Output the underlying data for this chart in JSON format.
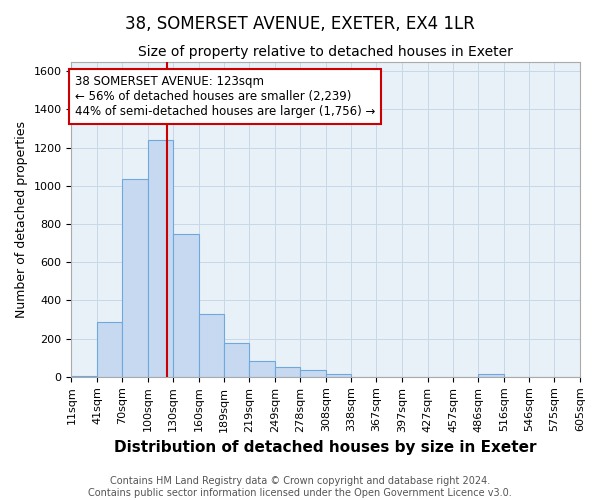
{
  "title1": "38, SOMERSET AVENUE, EXETER, EX4 1LR",
  "title2": "Size of property relative to detached houses in Exeter",
  "xlabel": "Distribution of detached houses by size in Exeter",
  "ylabel": "Number of detached properties",
  "bin_edges": [
    11,
    41,
    70,
    100,
    130,
    160,
    189,
    219,
    249,
    278,
    308,
    338,
    367,
    397,
    427,
    457,
    486,
    516,
    546,
    575,
    605
  ],
  "bar_heights": [
    5,
    285,
    1035,
    1240,
    750,
    330,
    175,
    85,
    50,
    35,
    15,
    0,
    0,
    0,
    0,
    0,
    15,
    0,
    0,
    0
  ],
  "bar_facecolor": "#c6d9f1",
  "bar_edgecolor": "#6fa8dc",
  "red_line_x": 123,
  "annotation_text": "38 SOMERSET AVENUE: 123sqm\n← 56% of detached houses are smaller (2,239)\n44% of semi-detached houses are larger (1,756) →",
  "annotation_box_edgecolor": "#cc0000",
  "annotation_box_facecolor": "#ffffff",
  "ylim": [
    0,
    1650
  ],
  "yticks": [
    0,
    200,
    400,
    600,
    800,
    1000,
    1200,
    1400,
    1600
  ],
  "grid_color": "#c8d8e8",
  "footer_text": "Contains HM Land Registry data © Crown copyright and database right 2024.\nContains public sector information licensed under the Open Government Licence v3.0.",
  "background_color": "#ffffff",
  "plot_background_color": "#e8f0f8",
  "title1_fontsize": 12,
  "title2_fontsize": 10,
  "xlabel_fontsize": 11,
  "ylabel_fontsize": 9,
  "tick_label_size": 8,
  "annotation_fontsize": 8.5,
  "footer_fontsize": 7
}
